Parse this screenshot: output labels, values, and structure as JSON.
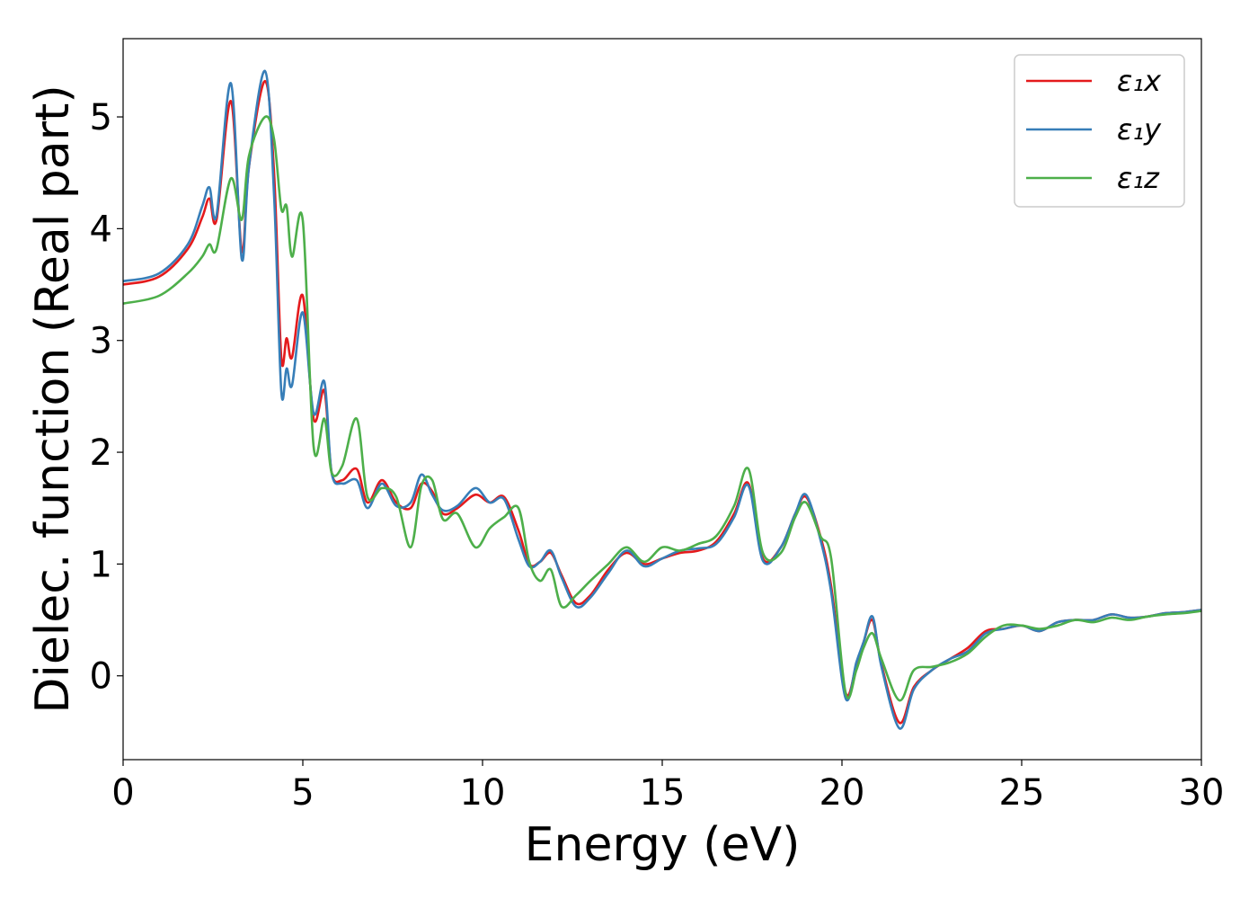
{
  "chart_data": {
    "type": "line",
    "title": "",
    "xlabel": "Energy (eV)",
    "ylabel": "Dielec. function (Real part)",
    "xlim": [
      0,
      30
    ],
    "ylim": [
      -0.75,
      5.7
    ],
    "xticks": [
      0,
      5,
      10,
      15,
      20,
      25,
      30
    ],
    "xtick_labels": [
      "0",
      "5",
      "10",
      "15",
      "20",
      "25",
      "30"
    ],
    "yticks": [
      0,
      1,
      2,
      3,
      4,
      5
    ],
    "ytick_labels": [
      "0",
      "1",
      "2",
      "3",
      "4",
      "5"
    ],
    "grid": false,
    "legend_position": "top-right",
    "series": [
      {
        "name": "ε₁x",
        "color": "#e41a1c",
        "x": [
          0,
          1,
          1.8,
          2.2,
          2.4,
          2.6,
          3.0,
          3.3,
          3.5,
          3.95,
          4.2,
          4.4,
          4.55,
          4.7,
          5.0,
          5.3,
          5.6,
          5.8,
          6.1,
          6.5,
          6.8,
          7.2,
          7.6,
          8.0,
          8.3,
          8.6,
          8.9,
          9.3,
          9.8,
          10.2,
          10.6,
          11.0,
          11.3,
          11.6,
          11.9,
          12.2,
          12.6,
          13.0,
          13.5,
          14.0,
          14.5,
          15.0,
          15.5,
          16.0,
          16.5,
          17.0,
          17.4,
          17.8,
          18.3,
          18.7,
          19.0,
          19.4,
          19.7,
          20.1,
          20.4,
          20.6,
          20.85,
          21.1,
          21.6,
          22.0,
          22.5,
          23.0,
          23.5,
          24.0,
          24.5,
          25.0,
          25.5,
          26.0,
          26.5,
          27.0,
          27.5,
          28.0,
          28.5,
          29.0,
          29.5,
          30.0
        ],
        "y": [
          3.5,
          3.57,
          3.82,
          4.1,
          4.27,
          4.08,
          5.14,
          3.8,
          4.55,
          5.32,
          4.5,
          2.85,
          3.02,
          2.85,
          3.4,
          2.3,
          2.55,
          1.82,
          1.75,
          1.85,
          1.55,
          1.75,
          1.55,
          1.5,
          1.72,
          1.65,
          1.45,
          1.5,
          1.62,
          1.55,
          1.6,
          1.3,
          1.0,
          1.02,
          1.1,
          0.9,
          0.65,
          0.72,
          0.95,
          1.1,
          1.0,
          1.05,
          1.1,
          1.12,
          1.2,
          1.45,
          1.72,
          1.05,
          1.15,
          1.45,
          1.6,
          1.25,
          0.8,
          -0.15,
          0.1,
          0.3,
          0.5,
          0.1,
          -0.42,
          -0.1,
          0.05,
          0.15,
          0.25,
          0.4,
          0.42,
          0.45,
          0.4,
          0.48,
          0.5,
          0.5,
          0.55,
          0.52,
          0.53,
          0.56,
          0.57,
          0.59
        ]
      },
      {
        "name": "ε₁y",
        "color": "#377eb8",
        "x": [
          0,
          1,
          1.8,
          2.2,
          2.4,
          2.6,
          3.0,
          3.3,
          3.5,
          3.95,
          4.2,
          4.4,
          4.55,
          4.7,
          5.0,
          5.3,
          5.6,
          5.8,
          6.1,
          6.5,
          6.8,
          7.2,
          7.6,
          8.0,
          8.3,
          8.6,
          8.9,
          9.3,
          9.8,
          10.2,
          10.6,
          11.0,
          11.3,
          11.6,
          11.9,
          12.2,
          12.6,
          13.0,
          13.5,
          14.0,
          14.5,
          15.0,
          15.5,
          16.0,
          16.5,
          17.0,
          17.4,
          17.8,
          18.3,
          18.7,
          19.0,
          19.4,
          19.7,
          20.1,
          20.4,
          20.6,
          20.85,
          21.1,
          21.6,
          22.0,
          22.5,
          23.0,
          23.5,
          24.0,
          24.5,
          25.0,
          25.5,
          26.0,
          26.5,
          27.0,
          27.5,
          28.0,
          28.5,
          29.0,
          29.5,
          30.0
        ],
        "y": [
          3.53,
          3.6,
          3.86,
          4.2,
          4.37,
          4.12,
          5.3,
          3.73,
          4.55,
          5.41,
          4.3,
          2.55,
          2.75,
          2.6,
          3.25,
          2.35,
          2.63,
          1.82,
          1.72,
          1.75,
          1.5,
          1.72,
          1.52,
          1.55,
          1.8,
          1.62,
          1.48,
          1.52,
          1.68,
          1.55,
          1.58,
          1.22,
          0.98,
          1.02,
          1.12,
          0.88,
          0.62,
          0.7,
          0.92,
          1.12,
          0.98,
          1.05,
          1.12,
          1.14,
          1.18,
          1.42,
          1.7,
          1.03,
          1.15,
          1.45,
          1.62,
          1.22,
          0.75,
          -0.2,
          0.12,
          0.3,
          0.53,
          0.08,
          -0.47,
          -0.12,
          0.05,
          0.15,
          0.22,
          0.38,
          0.42,
          0.45,
          0.4,
          0.48,
          0.5,
          0.5,
          0.55,
          0.52,
          0.53,
          0.56,
          0.57,
          0.59
        ]
      },
      {
        "name": "ε₁z",
        "color": "#4daf4a",
        "x": [
          0,
          1,
          1.8,
          2.2,
          2.4,
          2.6,
          3.0,
          3.3,
          3.5,
          3.95,
          4.2,
          4.4,
          4.55,
          4.7,
          5.0,
          5.3,
          5.6,
          5.8,
          6.1,
          6.5,
          6.8,
          7.2,
          7.6,
          8.0,
          8.3,
          8.6,
          8.9,
          9.3,
          9.8,
          10.2,
          10.6,
          11.0,
          11.3,
          11.6,
          11.9,
          12.2,
          12.6,
          13.0,
          13.5,
          14.0,
          14.5,
          15.0,
          15.5,
          16.0,
          16.5,
          17.0,
          17.4,
          17.8,
          18.3,
          18.7,
          19.0,
          19.4,
          19.7,
          20.1,
          20.4,
          20.6,
          20.85,
          21.1,
          21.6,
          22.0,
          22.5,
          23.0,
          23.5,
          24.0,
          24.5,
          25.0,
          25.5,
          26.0,
          26.5,
          27.0,
          27.5,
          28.0,
          28.5,
          29.0,
          29.5,
          30.0
        ],
        "y": [
          3.33,
          3.4,
          3.6,
          3.75,
          3.86,
          3.82,
          4.45,
          4.08,
          4.65,
          5.0,
          4.8,
          4.18,
          4.2,
          3.75,
          4.07,
          2.05,
          2.3,
          1.82,
          1.88,
          2.3,
          1.6,
          1.68,
          1.6,
          1.15,
          1.7,
          1.75,
          1.4,
          1.45,
          1.15,
          1.32,
          1.42,
          1.5,
          1.02,
          0.85,
          0.95,
          0.62,
          0.72,
          0.85,
          1.0,
          1.15,
          1.02,
          1.15,
          1.12,
          1.18,
          1.25,
          1.52,
          1.85,
          1.1,
          1.1,
          1.42,
          1.55,
          1.25,
          1.05,
          -0.15,
          0.05,
          0.25,
          0.38,
          0.15,
          -0.22,
          0.05,
          0.08,
          0.12,
          0.2,
          0.35,
          0.45,
          0.45,
          0.42,
          0.45,
          0.5,
          0.48,
          0.52,
          0.5,
          0.53,
          0.55,
          0.56,
          0.58
        ]
      }
    ]
  }
}
